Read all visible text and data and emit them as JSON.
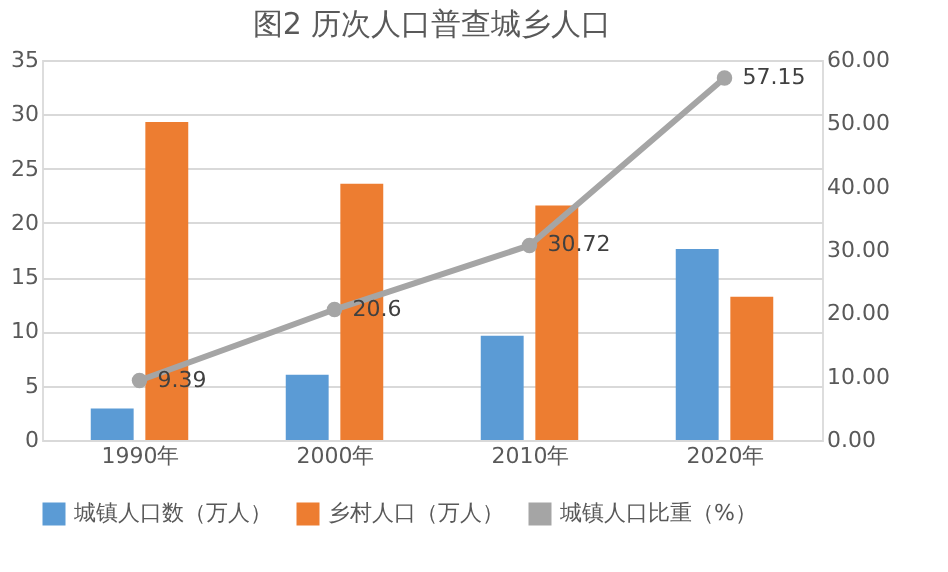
{
  "chart_data": {
    "type": "bar",
    "title": "图2  历次人口普查城乡人口",
    "categories": [
      "1990年",
      "2000年",
      "2010年",
      "2020年"
    ],
    "series": [
      {
        "name": "城镇人口数（万人）",
        "color": "#5b9bd5",
        "values": [
          2.9,
          6.0,
          9.6,
          17.6
        ]
      },
      {
        "name": "乡村人口（万人）",
        "color": "#ed7d31",
        "values": [
          29.3,
          23.6,
          21.6,
          13.2
        ]
      },
      {
        "name": "城镇人口比重（%）",
        "color": "#a5a5a5",
        "type": "line",
        "axis": "y2",
        "marker": "circle",
        "values": [
          9.39,
          20.6,
          30.72,
          57.15
        ],
        "value_labels": [
          "9.39",
          "20.6",
          "30.72",
          "57.15"
        ]
      }
    ],
    "ylim": [
      0,
      35
    ],
    "yticks": [
      0,
      5,
      10,
      15,
      20,
      25,
      30,
      35
    ],
    "y2lim": [
      0,
      60
    ],
    "y2ticks": [
      {
        "value": 0,
        "label": "0.00"
      },
      {
        "value": 10,
        "label": "10.00"
      },
      {
        "value": 20,
        "label": "20.00"
      },
      {
        "value": 30,
        "label": "30.00"
      },
      {
        "value": 40,
        "label": "40.00"
      },
      {
        "value": 50,
        "label": "50.00"
      },
      {
        "value": 60,
        "label": "60.00"
      }
    ],
    "grid": "y",
    "legend": "bottom"
  }
}
